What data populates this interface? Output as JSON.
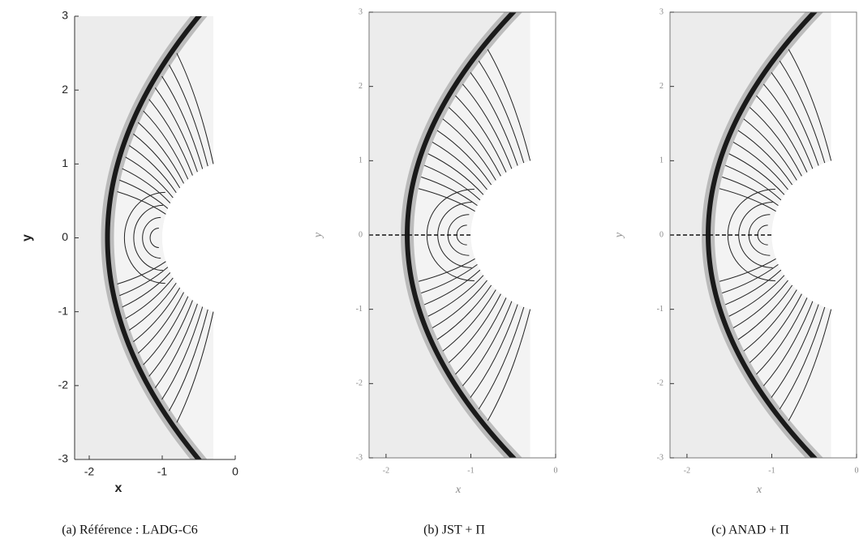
{
  "chart_data": [
    {
      "type": "contour",
      "caption": "(a) Référence : LADG-C6",
      "xlabel": "x",
      "ylabel": "y",
      "xlim": [
        -2.2,
        0
      ],
      "ylim": [
        -3,
        3
      ],
      "xticks": [
        -2,
        -1,
        0
      ],
      "yticks": [
        -3,
        -2,
        -1,
        0,
        1,
        2,
        3
      ]
    },
    {
      "type": "contour",
      "caption": "(b) JST + Π",
      "xlabel": "x",
      "ylabel": "y",
      "xlim": [
        -2.2,
        0
      ],
      "ylim": [
        -3,
        3
      ],
      "xticks": [
        -2,
        -1,
        0
      ],
      "yticks": [
        -3,
        -2,
        -1,
        0,
        1,
        2,
        3
      ]
    },
    {
      "type": "contour",
      "caption": "(c) ANAD + Π",
      "xlabel": "x",
      "ylabel": "y",
      "xlim": [
        -2.2,
        0
      ],
      "ylim": [
        -3,
        3
      ],
      "xticks": [
        -2,
        -1,
        0
      ],
      "yticks": [
        -3,
        -2,
        -1,
        0,
        1,
        2,
        3
      ]
    }
  ]
}
